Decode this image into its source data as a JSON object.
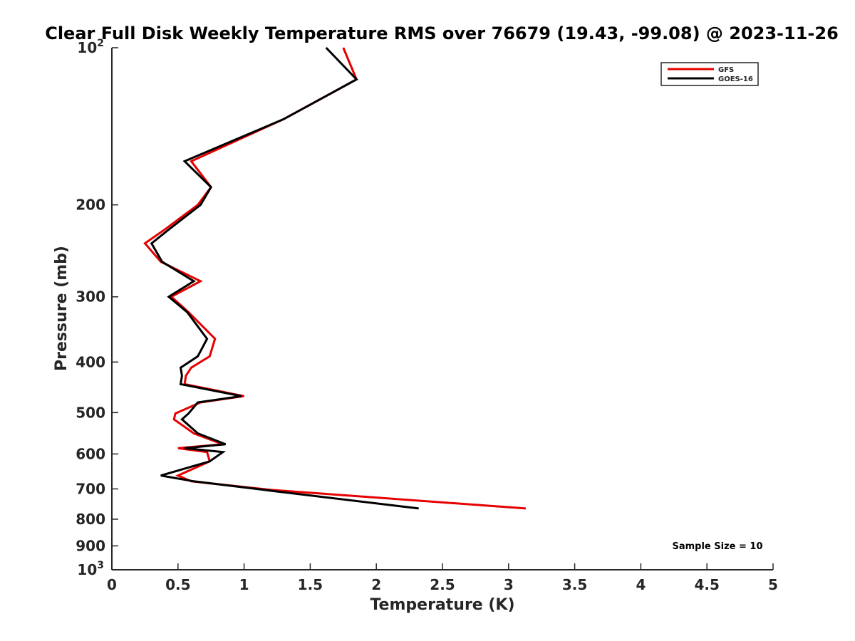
{
  "chart_data": {
    "type": "line",
    "title": "Clear Full Disk Weekly Temperature RMS over 76679 (19.43, -99.08) @ 2023-11-26",
    "xlabel": "Temperature (K)",
    "ylabel": "Pressure (mb)",
    "xlim": [
      0,
      5
    ],
    "ylim": [
      100,
      1000
    ],
    "y_scale": "log",
    "y_reversed": true,
    "grid": false,
    "legend_position": "top-right",
    "x_ticks": [
      "0",
      "0.5",
      "1",
      "1.5",
      "2",
      "2.5",
      "3",
      "3.5",
      "4",
      "4.5",
      "5"
    ],
    "y_ticks": [
      {
        "value": 100,
        "base": "10",
        "exp": "2"
      },
      {
        "value": 200,
        "label": "200"
      },
      {
        "value": 300,
        "label": "300"
      },
      {
        "value": 400,
        "label": "400"
      },
      {
        "value": 500,
        "label": "500"
      },
      {
        "value": 600,
        "label": "600"
      },
      {
        "value": 700,
        "label": "700"
      },
      {
        "value": 800,
        "label": "800"
      },
      {
        "value": 900,
        "label": "900"
      },
      {
        "value": 1000,
        "base": "10",
        "exp": "3"
      }
    ],
    "annotation": "Sample Size = 10",
    "series": [
      {
        "name": "GFS",
        "color": "#e60000",
        "points": [
          [
            1.75,
            100
          ],
          [
            1.85,
            115
          ],
          [
            1.3,
            137
          ],
          [
            0.6,
            165
          ],
          [
            0.75,
            185
          ],
          [
            0.65,
            200
          ],
          [
            0.4,
            223
          ],
          [
            0.25,
            237
          ],
          [
            0.37,
            257
          ],
          [
            0.67,
            280
          ],
          [
            0.45,
            300
          ],
          [
            0.58,
            321
          ],
          [
            0.78,
            361
          ],
          [
            0.74,
            390
          ],
          [
            0.6,
            410
          ],
          [
            0.56,
            425
          ],
          [
            0.55,
            441
          ],
          [
            1.0,
            465
          ],
          [
            0.67,
            478
          ],
          [
            0.48,
            502
          ],
          [
            0.47,
            515
          ],
          [
            0.62,
            548
          ],
          [
            0.84,
            575
          ],
          [
            0.5,
            585
          ],
          [
            0.72,
            595
          ],
          [
            0.74,
            620
          ],
          [
            0.5,
            660
          ],
          [
            0.6,
            677
          ],
          [
            1.2,
            703
          ],
          [
            3.13,
            763
          ]
        ]
      },
      {
        "name": "GOES-16",
        "color": "#000000",
        "points": [
          [
            1.62,
            100
          ],
          [
            1.85,
            115
          ],
          [
            1.3,
            137
          ],
          [
            0.55,
            165
          ],
          [
            0.75,
            185
          ],
          [
            0.67,
            200
          ],
          [
            0.43,
            223
          ],
          [
            0.3,
            237
          ],
          [
            0.38,
            257
          ],
          [
            0.62,
            280
          ],
          [
            0.43,
            300
          ],
          [
            0.57,
            321
          ],
          [
            0.72,
            361
          ],
          [
            0.65,
            390
          ],
          [
            0.52,
            410
          ],
          [
            0.53,
            425
          ],
          [
            0.52,
            441
          ],
          [
            0.98,
            465
          ],
          [
            0.65,
            478
          ],
          [
            0.58,
            502
          ],
          [
            0.53,
            515
          ],
          [
            0.65,
            548
          ],
          [
            0.86,
            575
          ],
          [
            0.55,
            585
          ],
          [
            0.84,
            595
          ],
          [
            0.74,
            620
          ],
          [
            0.37,
            660
          ],
          [
            0.62,
            677
          ],
          [
            1.15,
            703
          ],
          [
            2.32,
            763
          ]
        ]
      }
    ]
  }
}
